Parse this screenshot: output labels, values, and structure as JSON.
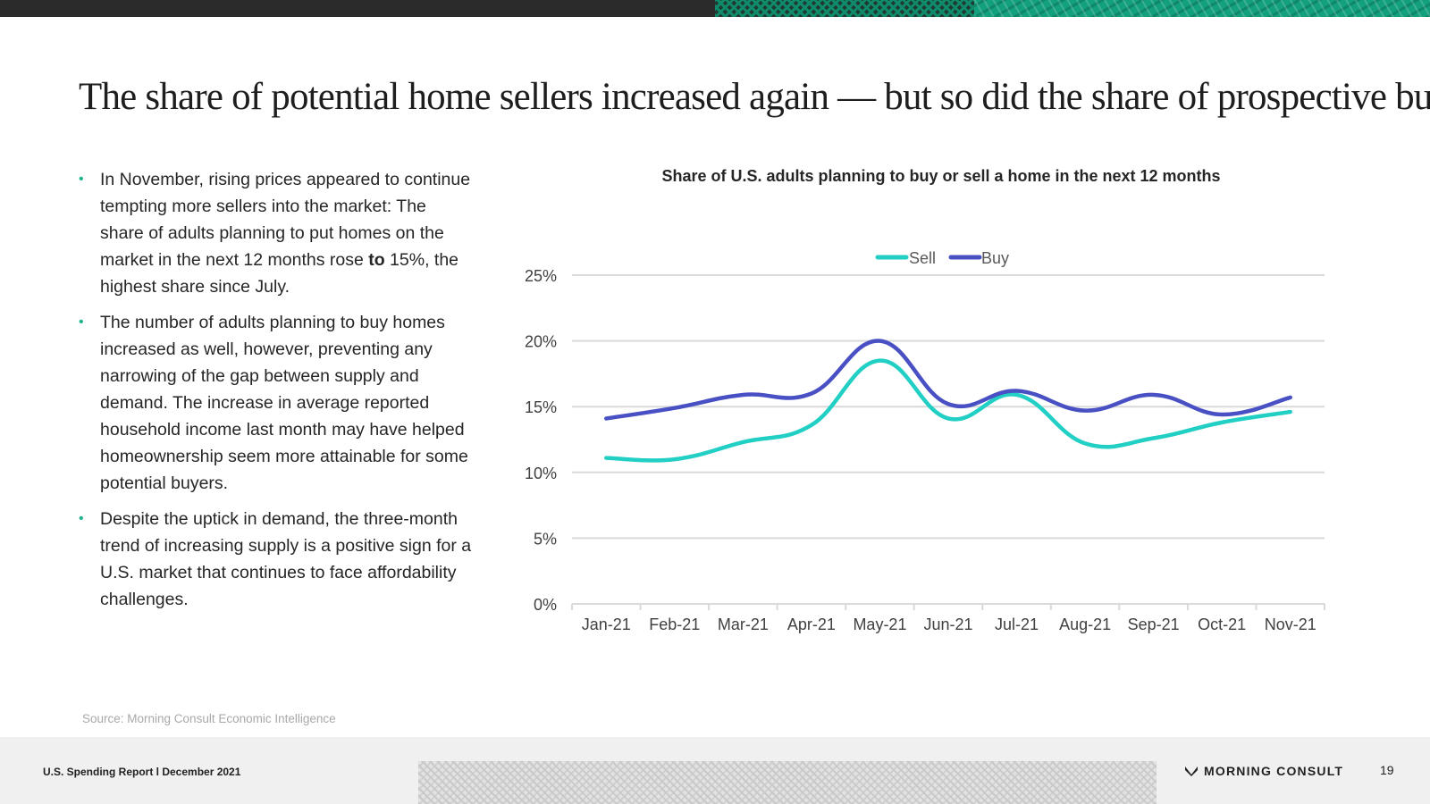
{
  "slide": {
    "title": "The share of potential home sellers increased again — but so did the share of prospective buyers",
    "bullets": [
      {
        "pre": "In November, rising prices appeared to continue tempting more sellers into the market: The share of adults planning to put homes on the market in the next 12 months rose ",
        "bold": "to",
        "post": " 15%, the highest share since July."
      },
      {
        "pre": "The number of adults planning to buy homes increased as well, however, preventing any narrowing of the gap between supply and demand. The increase in average reported household income last month may have helped homeownership seem more attainable for some potential buyers.",
        "bold": "",
        "post": ""
      },
      {
        "pre": "Despite the uptick in demand, the three-month trend of increasing supply is a positive sign for a U.S. market that continues to face affordability challenges.",
        "bold": "",
        "post": ""
      }
    ],
    "source": "Source: Morning Consult Economic Intelligence"
  },
  "footer": {
    "report": "U.S. Spending Report l December 2021",
    "brand": "MORNING CONSULT",
    "page": "19"
  },
  "colors": {
    "sell": "#22cfc4",
    "buy": "#4850c4",
    "bullet": "#1cb38c",
    "grid": "#d9d9d9"
  },
  "chart_data": {
    "type": "line",
    "title": "Share of U.S. adults planning to buy or sell a home in the next 12 months",
    "categories": [
      "Jan-21",
      "Feb-21",
      "Mar-21",
      "Apr-21",
      "May-21",
      "Jun-21",
      "Jul-21",
      "Aug-21",
      "Sep-21",
      "Oct-21",
      "Nov-21"
    ],
    "series": [
      {
        "name": "Sell",
        "values": [
          11.1,
          11.0,
          12.3,
          13.6,
          18.5,
          14.1,
          15.9,
          12.2,
          12.6,
          13.8,
          14.6
        ]
      },
      {
        "name": "Buy",
        "values": [
          14.1,
          14.9,
          15.9,
          16.0,
          20.0,
          15.2,
          16.2,
          14.7,
          15.9,
          14.4,
          15.7
        ]
      }
    ],
    "ylim": [
      0,
      25
    ],
    "yticks": [
      "0%",
      "5%",
      "10%",
      "15%",
      "20%",
      "25%"
    ],
    "legend": "top-center",
    "grid": true,
    "smooth": true
  }
}
